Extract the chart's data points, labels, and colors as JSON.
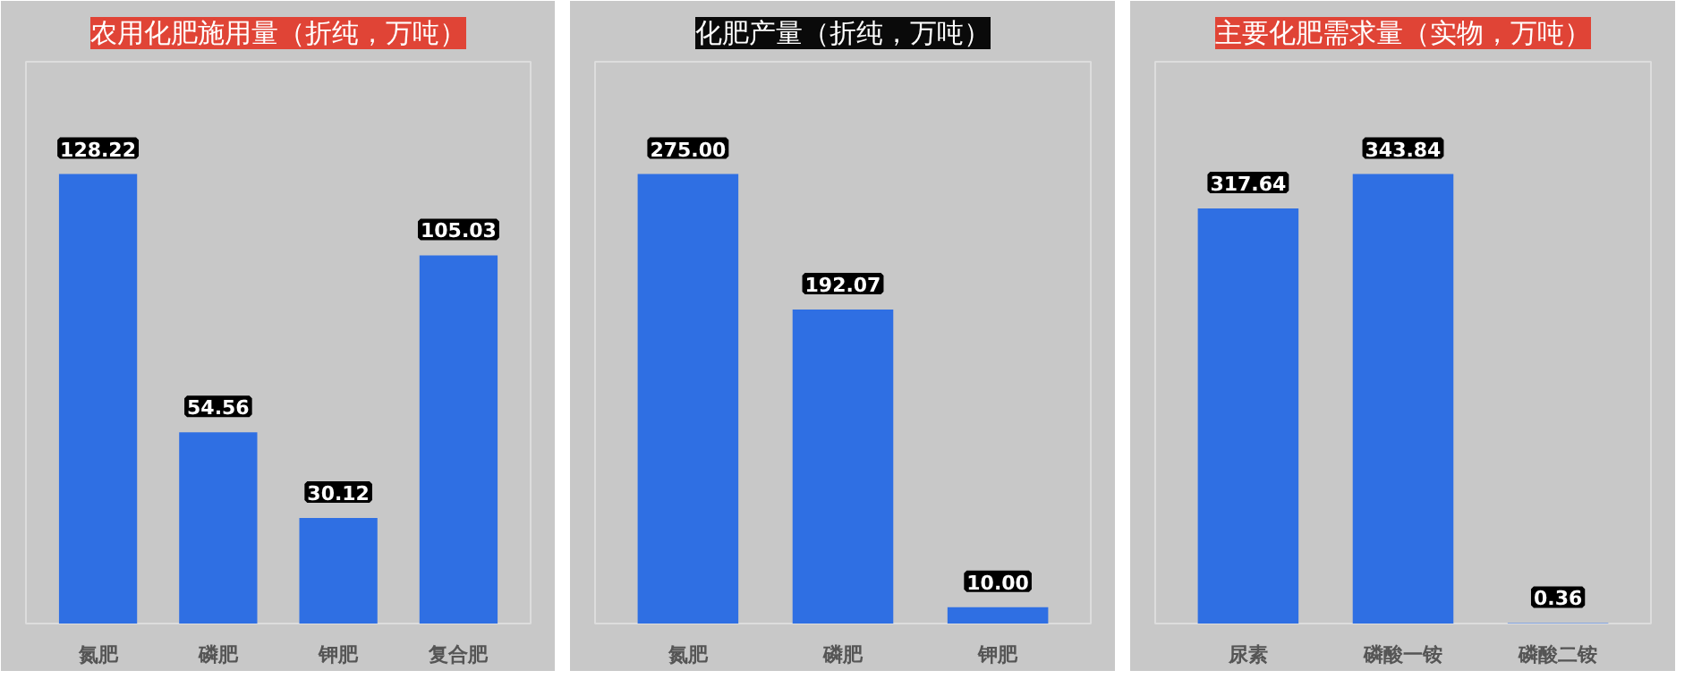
{
  "chart_data": [
    {
      "type": "bar",
      "title": "农用化肥施用量（折纯，万吨）",
      "categories": [
        "氮肥",
        "磷肥",
        "钾肥",
        "复合肥"
      ],
      "values": [
        128.22,
        54.56,
        30.12,
        105.03
      ],
      "color": "#2f6fe3",
      "data_labels": true
    },
    {
      "type": "bar",
      "title": "化肥产量（折纯，万吨）",
      "categories": [
        "氮肥",
        "磷肥",
        "钾肥"
      ],
      "values": [
        275.0,
        192.07,
        10.0
      ],
      "value_labels": [
        "275.00",
        "192.07",
        "10.00"
      ],
      "color": "#2f6fe3"
    },
    {
      "type": "bar",
      "title": "主要化肥需求量（实物，万吨）",
      "categories": [
        "尿素",
        "磷酸一铵",
        "磷酸二铵"
      ],
      "values": [
        317.64,
        343.84,
        0.36
      ],
      "color": "#2f6fe3",
      "data_labels": true
    }
  ]
}
